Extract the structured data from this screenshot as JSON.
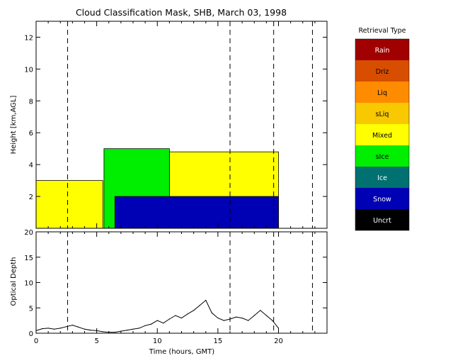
{
  "chart_data": [
    {
      "type": "heatmap",
      "title": "Cloud Classification Mask, SHB, March 03, 1998",
      "ylabel": "Height [km,AGL]",
      "xlim": [
        0,
        24
      ],
      "ylim": [
        0,
        13
      ],
      "yticks": [
        2,
        4,
        6,
        8,
        10,
        12
      ],
      "legend": {
        "title": "Retrieval Type",
        "placement": "right",
        "items": [
          {
            "label": "Rain",
            "color": "#a00000"
          },
          {
            "label": "Driz",
            "color": "#d84e00"
          },
          {
            "label": "Liq",
            "color": "#ff8c00"
          },
          {
            "label": "sLiq",
            "color": "#f8c800"
          },
          {
            "label": "Mixed",
            "color": "#ffff00"
          },
          {
            "label": "sIce",
            "color": "#00ee00"
          },
          {
            "label": "Ice",
            "color": "#007070"
          },
          {
            "label": "Snow",
            "color": "#0000b4"
          },
          {
            "label": "Uncrt",
            "color": "#000000"
          }
        ]
      },
      "dashed_times": [
        2.6,
        16.0,
        19.6,
        22.8
      ],
      "regions": [
        {
          "class": "Mixed",
          "x": [
            0,
            5.5
          ],
          "y": [
            0,
            3.0
          ]
        },
        {
          "class": "sIce",
          "x": [
            5.6,
            11.0
          ],
          "y": [
            0,
            5.0
          ]
        },
        {
          "class": "Mixed",
          "x": [
            11.0,
            20.0
          ],
          "y": [
            0,
            4.8
          ]
        },
        {
          "class": "Snow",
          "x": [
            6.5,
            20.0
          ],
          "y": [
            0,
            2.0
          ]
        }
      ]
    },
    {
      "type": "line",
      "xlabel": "Time (hours, GMT)",
      "ylabel": "Optical Depth",
      "xlim": [
        0,
        24
      ],
      "ylim": [
        0,
        20
      ],
      "xticks": [
        0,
        5,
        10,
        15,
        20
      ],
      "yticks": [
        0,
        5,
        10,
        15,
        20
      ],
      "series": [
        {
          "x": [
            0,
            0.5,
            1,
            1.5,
            2,
            2.5,
            3,
            3.5,
            4,
            4.5,
            5,
            5.5,
            6,
            6.5,
            7,
            7.5,
            8,
            8.5,
            9,
            9.5,
            10,
            10.5,
            11,
            11.5,
            12,
            12.5,
            13,
            13.5,
            14,
            14.5,
            15,
            15.5,
            16,
            16.5,
            17,
            17.5,
            18,
            18.5,
            19,
            19.5,
            20
          ],
          "y": [
            0.5,
            0.9,
            1.0,
            0.8,
            1.0,
            1.3,
            1.6,
            1.2,
            0.8,
            0.6,
            0.5,
            0.3,
            0.2,
            0.2,
            0.4,
            0.6,
            0.8,
            1.0,
            1.5,
            1.8,
            2.5,
            2.0,
            2.8,
            3.5,
            3.0,
            3.8,
            4.5,
            5.5,
            6.5,
            4.0,
            3.0,
            2.5,
            2.8,
            3.2,
            3.0,
            2.5,
            3.5,
            4.5,
            3.5,
            2.5,
            1.0
          ]
        }
      ]
    }
  ]
}
